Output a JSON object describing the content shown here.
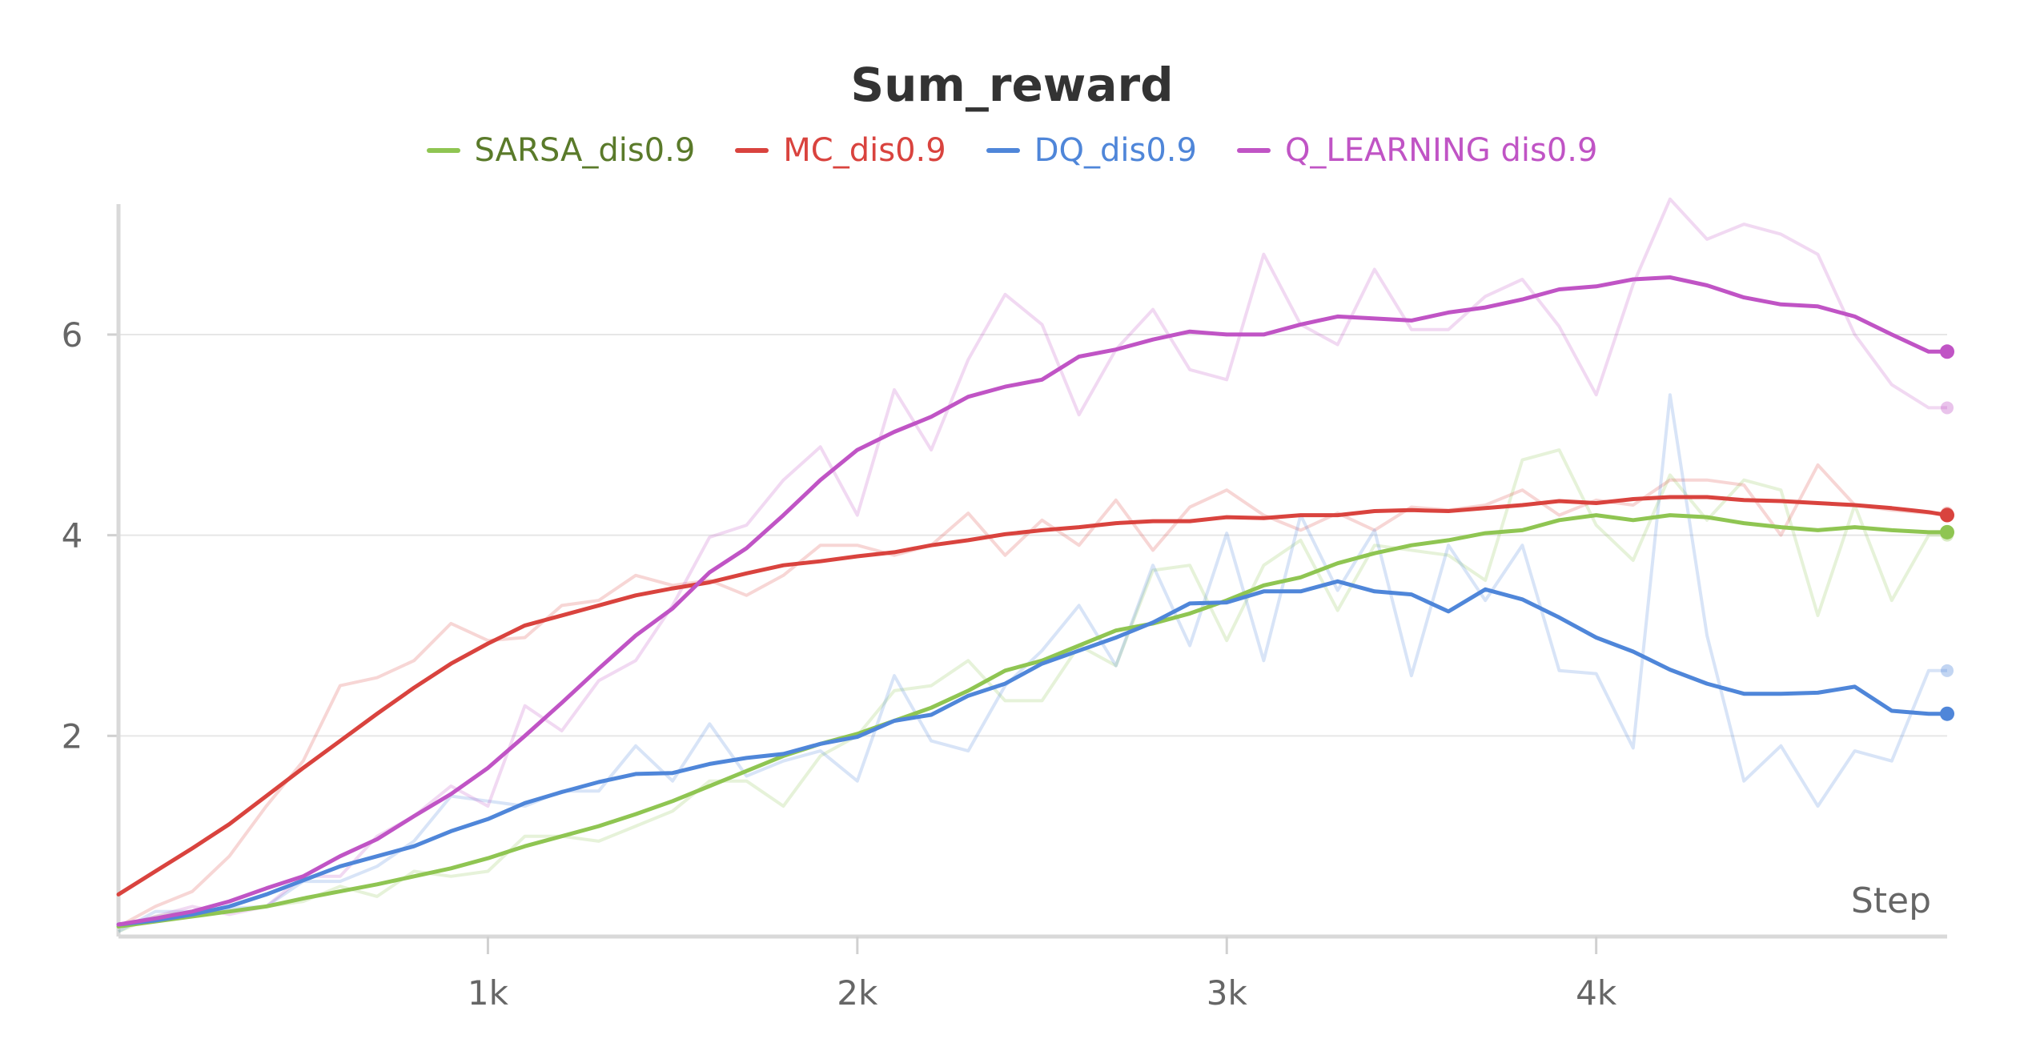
{
  "chart_data": {
    "type": "line",
    "title": "Sum_reward",
    "xlabel": "Step",
    "ylabel": "",
    "xlim": [
      0,
      4950
    ],
    "ylim": [
      0,
      7.3
    ],
    "x_ticks": [
      1000,
      2000,
      3000,
      4000
    ],
    "x_tick_labels": [
      "1k",
      "2k",
      "3k",
      "4k"
    ],
    "y_ticks": [
      2,
      4,
      6
    ],
    "y_tick_labels": [
      "2",
      "4",
      "6"
    ],
    "grid": true,
    "legend_position": "top",
    "smoothing": "smoothed lines drawn bold with raw values shown faint behind",
    "x": [
      0,
      100,
      200,
      300,
      400,
      500,
      600,
      700,
      800,
      900,
      1000,
      1100,
      1200,
      1300,
      1400,
      1500,
      1600,
      1700,
      1800,
      1900,
      2000,
      2100,
      2200,
      2300,
      2400,
      2500,
      2600,
      2700,
      2800,
      2900,
      3000,
      3100,
      3200,
      3300,
      3400,
      3500,
      3600,
      3700,
      3800,
      3900,
      4000,
      4100,
      4200,
      4300,
      4400,
      4500,
      4600,
      4700,
      4800,
      4900,
      4950
    ],
    "series": [
      {
        "name": "SARSA_dis0.9",
        "color": "#8fc552",
        "legend_text_color": "#5a7a2a",
        "smoothed": [
          0.1,
          0.15,
          0.2,
          0.25,
          0.3,
          0.38,
          0.45,
          0.52,
          0.6,
          0.68,
          0.78,
          0.9,
          1.0,
          1.1,
          1.22,
          1.35,
          1.5,
          1.65,
          1.8,
          1.92,
          2.02,
          2.15,
          2.28,
          2.45,
          2.65,
          2.75,
          2.9,
          3.05,
          3.12,
          3.22,
          3.35,
          3.5,
          3.58,
          3.72,
          3.82,
          3.9,
          3.95,
          4.02,
          4.05,
          4.15,
          4.2,
          4.15,
          4.2,
          4.18,
          4.12,
          4.08,
          4.05,
          4.08,
          4.05,
          4.03,
          4.03
        ],
        "raw": [
          0.05,
          0.2,
          0.25,
          0.25,
          0.3,
          0.35,
          0.5,
          0.4,
          0.65,
          0.6,
          0.65,
          1.0,
          1.0,
          0.95,
          1.1,
          1.25,
          1.55,
          1.55,
          1.3,
          1.8,
          2.0,
          2.45,
          2.5,
          2.75,
          2.35,
          2.35,
          2.9,
          2.7,
          3.65,
          3.7,
          2.95,
          3.7,
          3.95,
          3.25,
          3.9,
          3.85,
          3.8,
          3.55,
          4.75,
          4.85,
          4.1,
          3.75,
          4.6,
          4.15,
          4.55,
          4.45,
          3.2,
          4.3,
          3.35,
          4.0,
          4.0
        ]
      },
      {
        "name": "MC_dis0.9",
        "color": "#d9433e",
        "legend_text_color": "#d9433e",
        "smoothed": [
          0.42,
          0.65,
          0.88,
          1.12,
          1.4,
          1.68,
          1.95,
          2.22,
          2.48,
          2.72,
          2.92,
          3.1,
          3.2,
          3.3,
          3.4,
          3.47,
          3.53,
          3.62,
          3.7,
          3.74,
          3.79,
          3.83,
          3.9,
          3.95,
          4.01,
          4.05,
          4.08,
          4.12,
          4.14,
          4.14,
          4.18,
          4.17,
          4.2,
          4.2,
          4.24,
          4.25,
          4.24,
          4.27,
          4.3,
          4.34,
          4.32,
          4.36,
          4.38,
          4.38,
          4.35,
          4.34,
          4.32,
          4.3,
          4.27,
          4.23,
          4.2
        ],
        "raw": [
          0.1,
          0.3,
          0.45,
          0.8,
          1.3,
          1.75,
          2.5,
          2.58,
          2.75,
          3.12,
          2.95,
          2.98,
          3.3,
          3.35,
          3.6,
          3.5,
          3.55,
          3.4,
          3.6,
          3.9,
          3.9,
          3.8,
          3.9,
          4.22,
          3.8,
          4.15,
          3.9,
          4.35,
          3.85,
          4.28,
          4.45,
          4.2,
          4.05,
          4.22,
          4.05,
          4.28,
          4.25,
          4.3,
          4.45,
          4.2,
          4.35,
          4.3,
          4.55,
          4.55,
          4.5,
          4.0,
          4.7,
          4.3,
          4.25,
          4.22,
          4.22
        ]
      },
      {
        "name": "DQ_dis0.9",
        "color": "#4f86d9",
        "legend_text_color": "#4f86d9",
        "smoothed": [
          0.12,
          0.16,
          0.22,
          0.3,
          0.42,
          0.56,
          0.7,
          0.8,
          0.9,
          1.05,
          1.17,
          1.33,
          1.44,
          1.54,
          1.62,
          1.63,
          1.72,
          1.78,
          1.82,
          1.92,
          1.99,
          2.15,
          2.21,
          2.4,
          2.52,
          2.72,
          2.85,
          2.98,
          3.13,
          3.32,
          3.33,
          3.44,
          3.44,
          3.54,
          3.44,
          3.41,
          3.24,
          3.46,
          3.36,
          3.18,
          2.98,
          2.84,
          2.66,
          2.52,
          2.42,
          2.42,
          2.43,
          2.49,
          2.25,
          2.22,
          2.22
        ],
        "raw": [
          0.05,
          0.25,
          0.25,
          0.28,
          0.3,
          0.55,
          0.55,
          0.7,
          0.95,
          1.4,
          1.35,
          1.3,
          1.45,
          1.45,
          1.9,
          1.55,
          2.12,
          1.6,
          1.75,
          1.85,
          1.55,
          2.6,
          1.95,
          1.85,
          2.5,
          2.85,
          3.3,
          2.7,
          3.7,
          2.9,
          4.02,
          2.75,
          4.2,
          3.45,
          4.05,
          2.6,
          3.9,
          3.35,
          3.9,
          2.65,
          2.62,
          1.88,
          5.4,
          3.0,
          1.55,
          1.9,
          1.3,
          1.85,
          1.75,
          2.65,
          2.65
        ]
      },
      {
        "name": "Q_LEARNING dis0.9",
        "color": "#c054c5",
        "legend_text_color": "#c054c5",
        "smoothed": [
          0.12,
          0.18,
          0.25,
          0.35,
          0.48,
          0.6,
          0.8,
          0.97,
          1.2,
          1.42,
          1.68,
          2.0,
          2.33,
          2.67,
          3.0,
          3.27,
          3.63,
          3.87,
          4.2,
          4.55,
          4.85,
          5.03,
          5.18,
          5.38,
          5.48,
          5.55,
          5.78,
          5.85,
          5.95,
          6.03,
          6.0,
          6.0,
          6.1,
          6.18,
          6.16,
          6.14,
          6.22,
          6.27,
          6.35,
          6.45,
          6.48,
          6.55,
          6.57,
          6.49,
          6.37,
          6.3,
          6.28,
          6.18,
          6.0,
          5.83,
          5.83
        ],
        "raw": [
          0.1,
          0.2,
          0.3,
          0.22,
          0.3,
          0.6,
          0.6,
          1.0,
          1.2,
          1.5,
          1.3,
          2.3,
          2.05,
          2.55,
          2.75,
          3.3,
          3.98,
          4.1,
          4.55,
          4.88,
          4.2,
          5.45,
          4.85,
          5.75,
          6.4,
          6.1,
          5.2,
          5.85,
          6.25,
          5.65,
          5.55,
          6.8,
          6.1,
          5.9,
          6.65,
          6.05,
          6.05,
          6.38,
          6.55,
          6.08,
          5.4,
          6.5,
          7.35,
          6.95,
          7.1,
          7.0,
          6.8,
          6.0,
          5.5,
          5.27,
          5.27
        ]
      }
    ]
  }
}
